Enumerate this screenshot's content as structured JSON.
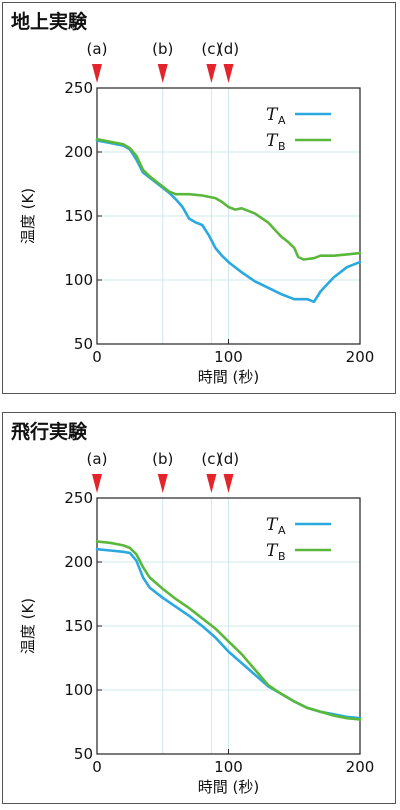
{
  "chart_data": [
    {
      "type": "line",
      "title": "地上実験",
      "xlabel": "時間 (秒)",
      "ylabel": "温度 (K)",
      "xlim": [
        0,
        200
      ],
      "ylim": [
        50,
        250
      ],
      "x_ticks": [
        0,
        100,
        200
      ],
      "x_tick_labels": [
        "0",
        "100",
        "200"
      ],
      "y_ticks": [
        50,
        100,
        150,
        200,
        250
      ],
      "y_tick_labels": [
        "50",
        "100",
        "150",
        "200",
        "250"
      ],
      "grid": true,
      "legend_position": "top-right",
      "event_markers": [
        {
          "label": "(a)",
          "x": 0
        },
        {
          "label": "(b)",
          "x": 50
        },
        {
          "label": "(c)",
          "x": 87
        },
        {
          "label": "(d)",
          "x": 100
        }
      ],
      "series": [
        {
          "name": "TA",
          "name_main": "T",
          "name_sub": "A",
          "color": "#29a9e0",
          "x": [
            0,
            10,
            20,
            25,
            30,
            35,
            40,
            50,
            55,
            60,
            65,
            70,
            75,
            80,
            85,
            90,
            95,
            100,
            110,
            120,
            130,
            140,
            150,
            155,
            160,
            165,
            170,
            180,
            190,
            200
          ],
          "y": [
            209,
            207,
            205,
            202,
            194,
            184,
            180,
            172,
            168,
            163,
            157,
            148,
            145,
            143,
            135,
            125,
            119,
            114,
            106,
            99,
            94,
            89,
            85,
            85,
            85,
            83,
            91,
            102,
            110,
            114
          ]
        },
        {
          "name": "TB",
          "name_main": "T",
          "name_sub": "B",
          "color": "#59b83a",
          "x": [
            0,
            10,
            20,
            25,
            30,
            35,
            40,
            50,
            55,
            60,
            70,
            80,
            90,
            95,
            100,
            105,
            110,
            120,
            130,
            140,
            145,
            150,
            153,
            157,
            165,
            170,
            180,
            190,
            200
          ],
          "y": [
            210,
            208,
            206,
            203,
            197,
            186,
            181,
            173,
            169,
            167,
            167,
            166,
            164,
            161,
            157,
            155,
            156,
            152,
            145,
            134,
            130,
            125,
            118,
            116,
            117,
            119,
            119,
            120,
            121
          ]
        }
      ]
    },
    {
      "type": "line",
      "title": "飛行実験",
      "xlabel": "時間 (秒)",
      "ylabel": "温度 (K)",
      "xlim": [
        0,
        200
      ],
      "ylim": [
        50,
        250
      ],
      "x_ticks": [
        0,
        100,
        200
      ],
      "x_tick_labels": [
        "0",
        "100",
        "200"
      ],
      "y_ticks": [
        50,
        100,
        150,
        200,
        250
      ],
      "y_tick_labels": [
        "50",
        "100",
        "150",
        "200",
        "250"
      ],
      "grid": true,
      "legend_position": "top-right",
      "event_markers": [
        {
          "label": "(a)",
          "x": 0
        },
        {
          "label": "(b)",
          "x": 50
        },
        {
          "label": "(c)",
          "x": 87
        },
        {
          "label": "(d)",
          "x": 100
        }
      ],
      "series": [
        {
          "name": "TA",
          "name_main": "T",
          "name_sub": "A",
          "color": "#29a9e0",
          "x": [
            0,
            10,
            20,
            25,
            30,
            35,
            40,
            50,
            60,
            70,
            80,
            90,
            100,
            110,
            120,
            130,
            140,
            150,
            160,
            170,
            180,
            190,
            200
          ],
          "y": [
            210,
            209,
            208,
            207,
            201,
            188,
            180,
            172,
            165,
            158,
            150,
            141,
            130,
            121,
            112,
            103,
            97,
            91,
            86,
            83,
            81,
            79,
            78
          ]
        },
        {
          "name": "TB",
          "name_main": "T",
          "name_sub": "B",
          "color": "#59b83a",
          "x": [
            0,
            10,
            20,
            25,
            30,
            35,
            40,
            50,
            60,
            70,
            80,
            90,
            100,
            110,
            120,
            130,
            140,
            150,
            160,
            170,
            180,
            190,
            200
          ],
          "y": [
            216,
            215,
            213,
            211,
            206,
            196,
            188,
            179,
            171,
            164,
            156,
            148,
            138,
            128,
            116,
            104,
            97,
            91,
            86,
            83,
            80,
            78,
            77
          ]
        }
      ]
    }
  ]
}
